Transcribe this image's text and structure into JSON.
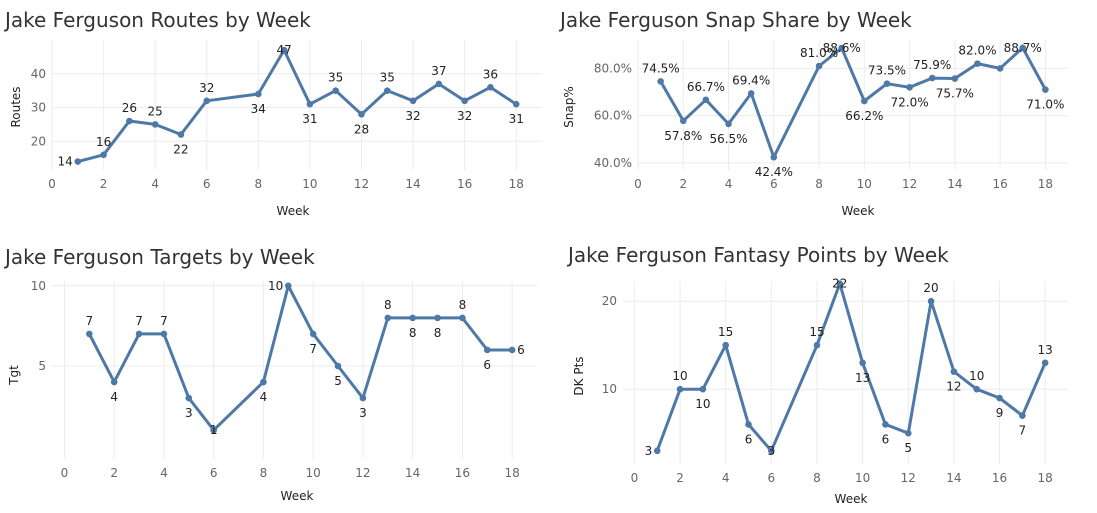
{
  "colors": {
    "line": "#4e79a7",
    "grid": "#ececec",
    "tick": "#666666",
    "label": "#222222",
    "title": "#333333"
  },
  "chart_data": [
    {
      "type": "line",
      "title": "Jake Ferguson Routes by Week",
      "xlabel": "Week",
      "ylabel": "Routes",
      "xlim": [
        0,
        19
      ],
      "ylim": [
        11.5,
        50
      ],
      "xticks": [
        0,
        2,
        4,
        6,
        8,
        10,
        12,
        14,
        16,
        18
      ],
      "yticks": [
        20,
        30,
        40
      ],
      "ytick_labels": [
        "20",
        "30",
        "40"
      ],
      "grid": true,
      "x": [
        1,
        2,
        3,
        4,
        5,
        6,
        8,
        9,
        10,
        11,
        12,
        13,
        14,
        15,
        16,
        17,
        18
      ],
      "values": [
        14,
        16,
        26,
        25,
        22,
        32,
        34,
        47,
        31,
        35,
        28,
        35,
        32,
        37,
        32,
        36,
        31
      ],
      "labels": [
        "14",
        "16",
        "26",
        "25",
        "22",
        "32",
        "34",
        "47",
        "31",
        "35",
        "28",
        "35",
        "32",
        "37",
        "32",
        "36",
        "31"
      ],
      "label_pos": [
        "left",
        "above",
        "above",
        "above",
        "below",
        "above",
        "below",
        "overlap",
        "below",
        "above",
        "below",
        "above",
        "below",
        "above",
        "below",
        "above",
        "below"
      ]
    },
    {
      "type": "line",
      "title": "Jake Ferguson Snap Share by Week",
      "xlabel": "Week",
      "ylabel": "Snap%",
      "xlim": [
        0,
        19
      ],
      "ylim": [
        37,
        92
      ],
      "xticks": [
        0,
        2,
        4,
        6,
        8,
        10,
        12,
        14,
        16,
        18
      ],
      "yticks": [
        40,
        60,
        80
      ],
      "ytick_labels": [
        "40.0%",
        "60.0%",
        "80.0%"
      ],
      "grid": true,
      "x": [
        1,
        2,
        3,
        4,
        5,
        6,
        8,
        9,
        10,
        11,
        12,
        13,
        14,
        15,
        16,
        17,
        18
      ],
      "values": [
        74.5,
        57.8,
        66.7,
        56.5,
        69.4,
        42.4,
        81.0,
        88.6,
        66.2,
        73.5,
        72.0,
        75.9,
        75.7,
        82.0,
        80.0,
        88.7,
        71.0
      ],
      "labels": [
        "74.5%",
        "57.8%",
        "66.7%",
        "56.5%",
        "69.4%",
        "42.4%",
        "81.0%",
        "88.6%",
        "66.2%",
        "73.5%",
        "72.0%",
        "75.9%",
        "75.7%",
        "82.0%",
        "",
        "88.7%",
        "71.0%"
      ],
      "label_pos": [
        "above",
        "below",
        "above",
        "below",
        "above",
        "below",
        "above",
        "overlap",
        "below",
        "above",
        "below",
        "above",
        "below",
        "above",
        "none",
        "overlap",
        "below"
      ]
    },
    {
      "type": "line",
      "title": "Jake Ferguson Targets by Week",
      "xlabel": "Week",
      "ylabel": "Tgt",
      "xlim": [
        -0.5,
        19
      ],
      "ylim": [
        -0.8,
        10.3
      ],
      "xticks": [
        0,
        2,
        4,
        6,
        8,
        10,
        12,
        14,
        16,
        18
      ],
      "yticks": [
        5,
        10
      ],
      "ytick_labels": [
        "5",
        "10"
      ],
      "grid": true,
      "x": [
        1,
        2,
        3,
        4,
        5,
        6,
        8,
        9,
        10,
        11,
        12,
        13,
        14,
        15,
        16,
        17,
        18
      ],
      "values": [
        7,
        4,
        7,
        7,
        3,
        1,
        4,
        10,
        7,
        5,
        3,
        8,
        8,
        8,
        8,
        6,
        6
      ],
      "labels": [
        "7",
        "4",
        "7",
        "7",
        "3",
        "1",
        "4",
        "10",
        "7",
        "5",
        "3",
        "8",
        "8",
        "8",
        "8",
        "6",
        "6"
      ],
      "label_pos": [
        "above",
        "below",
        "above",
        "above",
        "below",
        "overlap",
        "below",
        "left",
        "below",
        "below",
        "below",
        "above",
        "below",
        "below",
        "above",
        "below",
        "right"
      ]
    },
    {
      "type": "line",
      "title": "Jake Ferguson Fantasy Points by Week",
      "xlabel": "Week",
      "ylabel": "DK Pts",
      "xlim": [
        -0.5,
        19
      ],
      "ylim": [
        1.5,
        22.3
      ],
      "xticks": [
        0,
        2,
        4,
        6,
        8,
        10,
        12,
        14,
        16,
        18
      ],
      "yticks": [
        10,
        20
      ],
      "ytick_labels": [
        "10",
        "20"
      ],
      "grid": true,
      "x": [
        1,
        2,
        3,
        4,
        5,
        6,
        8,
        9,
        10,
        11,
        12,
        13,
        14,
        15,
        16,
        17,
        18
      ],
      "values": [
        3,
        10,
        10,
        15,
        6,
        3,
        15,
        22,
        13,
        6,
        5,
        20,
        12,
        10,
        9,
        7,
        13
      ],
      "labels": [
        "3",
        "10",
        "10",
        "15",
        "6",
        "3",
        "15",
        "22",
        "13",
        "6",
        "5",
        "20",
        "12",
        "10",
        "9",
        "7",
        "13"
      ],
      "label_pos": [
        "left",
        "above",
        "below",
        "above",
        "below",
        "overlap",
        "above",
        "overlap",
        "below",
        "below",
        "below",
        "above",
        "below",
        "above",
        "below",
        "below",
        "above"
      ]
    }
  ]
}
